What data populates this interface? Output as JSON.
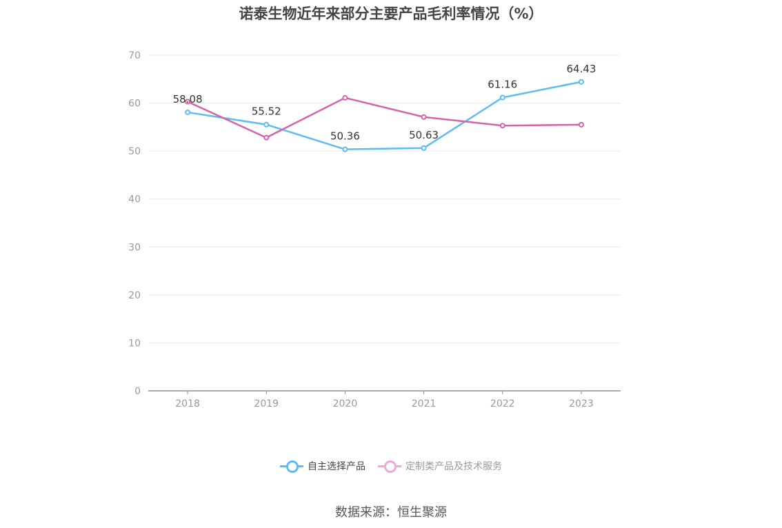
{
  "chart_data": {
    "type": "line",
    "title": "诺泰生物近年来部分主要产品毛利率情况（%）",
    "categories": [
      "2018",
      "2019",
      "2020",
      "2021",
      "2022",
      "2023"
    ],
    "ylim": [
      0,
      70
    ],
    "yticks": [
      0,
      10,
      20,
      30,
      40,
      50,
      60,
      70
    ],
    "grid": true,
    "legend_position": "bottom",
    "series": [
      {
        "name": "自主选择产品",
        "color": "#5bbcf0",
        "values": [
          58.08,
          55.52,
          50.36,
          50.63,
          61.16,
          64.43
        ],
        "labels_shown": true
      },
      {
        "name": "定制类产品及技术服务",
        "color": "#d462a8",
        "values": [
          60.3,
          52.8,
          61.1,
          57.1,
          55.3,
          55.5
        ],
        "labels_shown": false
      }
    ]
  },
  "source": "数据来源：恒生聚源"
}
